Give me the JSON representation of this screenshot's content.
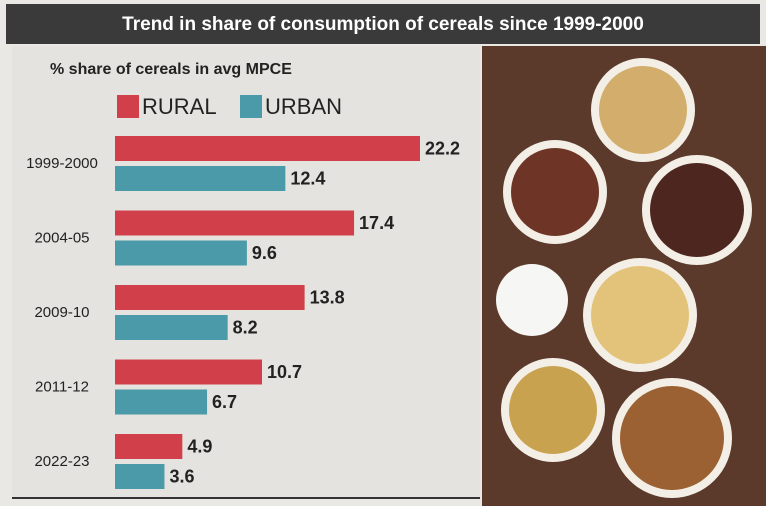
{
  "chart_data": {
    "type": "hbar",
    "title": "Trend in share of  consumption of cereals since 1999-2000",
    "subtitle": "% share of cereals in avg MPCE",
    "categories": [
      "1999-2000",
      "2004-05",
      "2009-10",
      "2011-12",
      "2022-23"
    ],
    "series": [
      {
        "name": "RURAL",
        "color": "#d1404a",
        "values": [
          22.2,
          17.4,
          13.8,
          10.7,
          4.9
        ]
      },
      {
        "name": "URBAN",
        "color": "#4b9aa9",
        "values": [
          12.4,
          9.6,
          8.2,
          6.7,
          3.6
        ]
      }
    ]
  }
}
